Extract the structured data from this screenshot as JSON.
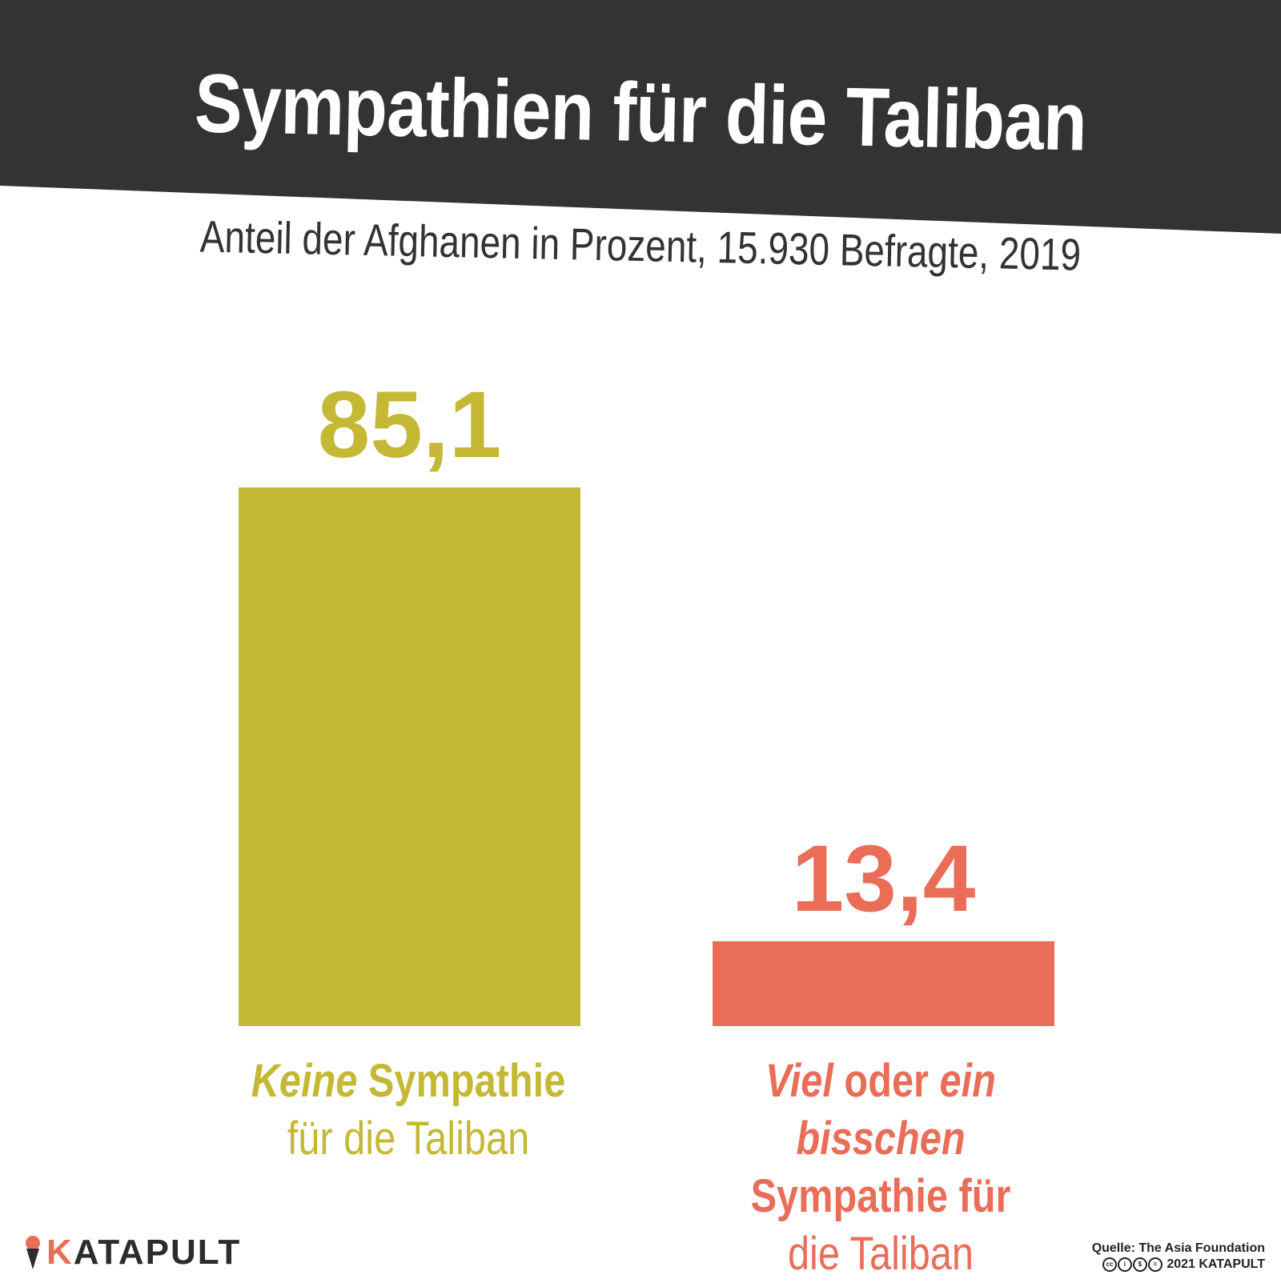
{
  "title": "Sympathien für die Taliban",
  "subtitle": "Anteil der Afghanen in Prozent, 15.930 Befragte, 2019",
  "colors": {
    "header": "#333333",
    "bar_1": "#c4b835",
    "bar_2": "#e96d57",
    "title_text": "#ffffff"
  },
  "chart_data": {
    "type": "bar",
    "categories": [
      "Keine Sympathie für die Taliban",
      "Viel oder ein bisschen Sympathie für die Taliban"
    ],
    "values": [
      85.1,
      13.4
    ],
    "value_labels": [
      "85,1",
      "13,4"
    ],
    "title": "Sympathien für die Taliban",
    "subtitle": "Anteil der Afghanen in Prozent, 15.930 Befragte, 2019",
    "xlabel": "",
    "ylabel": "",
    "ylim": [
      0,
      85.1
    ],
    "grid": false,
    "legend": "none"
  },
  "labels": {
    "bar_0": {
      "emph": "Keine",
      "rest": " Sympathie",
      "line2": "für die Taliban"
    },
    "bar_1": {
      "emph1": "Viel",
      "mid": " oder ",
      "emph2": "ein bisschen",
      "line2": "Sympathie für",
      "line3": "die Taliban"
    }
  },
  "footer": {
    "logo_k": "K",
    "logo_rest": "ATAPULT",
    "source": "Quelle: The Asia Foundation",
    "copyright": "2021 KATAPULT",
    "license_icons": [
      "cc-icon",
      "by-icon",
      "nc-icon",
      "nd-icon"
    ]
  }
}
